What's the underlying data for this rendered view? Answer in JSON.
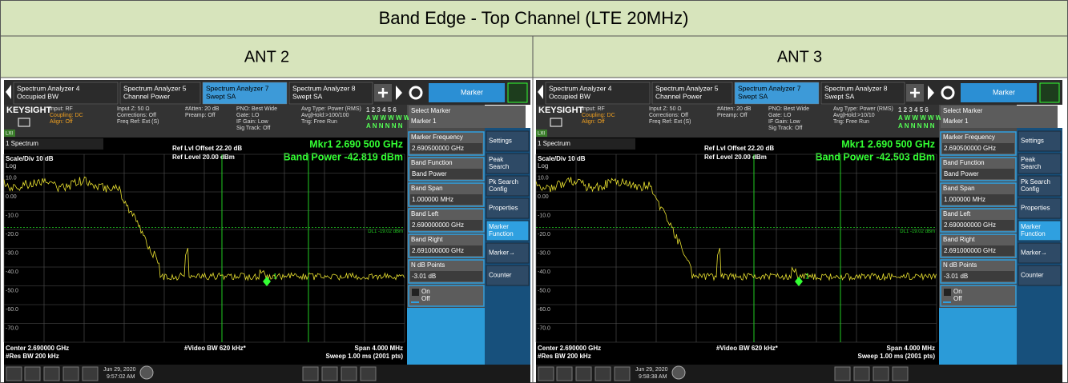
{
  "title": "Band Edge - Top Channel (LTE 20MHz)",
  "columns": [
    {
      "header": "ANT 2",
      "screen": {
        "tabs": [
          [
            "Spectrum Analyzer 4",
            "Occupied BW"
          ],
          [
            "Spectrum Analyzer 5",
            "Channel Power"
          ],
          [
            "Spectrum Analyzer 7",
            "Swept SA"
          ],
          [
            "Spectrum Analyzer 8",
            "Swept SA"
          ]
        ],
        "mode_menu": "Marker",
        "brand": "KEYSIGHT",
        "lxi": "LXI",
        "settings": [
          [
            "Input: RF",
            "Coupling: DC",
            "Align: Off"
          ],
          [
            "Input Z: 50 Ω",
            "Corrections: Off",
            "Freq Ref: Ext (S)"
          ],
          [
            "#Atten: 20 dB",
            "Preamp: Off"
          ],
          [
            "PNO: Best Wide",
            "Gate: LO",
            "IF Gain: Low",
            "Sig Track: Off"
          ],
          [
            "Avg Type: Power (RMS)",
            "Avg|Hold:>100/100",
            "Trig: Free Run"
          ]
        ],
        "trace_rows": [
          "1 2 3 4 5 6",
          "A W W W W W",
          "A N N N N N"
        ],
        "window": "1 Spectrum",
        "ref_offset": "Ref Lvl Offset 22.20 dB",
        "ref_level": "Ref Level 20.00 dBm",
        "marker_readout": "Mkr1  2.690 500 GHz",
        "band_power": "Band Power  -42.819 dBm",
        "scale": "Scale/Div 10 dB",
        "scale_type": "Log",
        "y_labels": [
          "10.0",
          "0.00",
          "-10.0",
          "-20.0",
          "-30.0",
          "-40.0",
          "-50.0",
          "-60.0",
          "-70.0"
        ],
        "display_line": "DL1 -19.02 dBm",
        "marker_label": "1",
        "footer": {
          "center": "Center 2.690000 GHz",
          "res_bw": "#Res BW 200 kHz",
          "video_bw": "#Video BW 620 kHz*",
          "span": "Span 4.000 MHz",
          "sweep": "Sweep 1.00 ms (2001 pts)"
        },
        "date": "Jun 29, 2020",
        "time": "9:57:02 AM",
        "select_marker": {
          "label": "Select Marker",
          "value": "Marker 1"
        },
        "softkeys": [
          {
            "label": "Marker Frequency",
            "value": "2.690500000 GHz"
          },
          {
            "label": "Band Function",
            "value": "Band Power"
          },
          {
            "label": "Band Span",
            "value": "1.000000 MHz"
          },
          {
            "label": "Band Left",
            "value": "2.690000000 GHz"
          },
          {
            "label": "Band Right",
            "value": "2.691000000 GHz"
          },
          {
            "label": "N dB Points",
            "value": "-3.01 dB"
          }
        ],
        "toggle": [
          "On",
          "Off"
        ],
        "menu": [
          [
            "Settings"
          ],
          [
            "Peak",
            "Search"
          ],
          [
            "Pk Search",
            "Config"
          ],
          [
            "Properties"
          ],
          [
            "Marker",
            "Function"
          ],
          [
            "Marker→"
          ],
          [
            "Counter"
          ]
        ]
      }
    },
    {
      "header": "ANT 3",
      "screen": {
        "tabs": [
          [
            "Spectrum Analyzer 4",
            "Occupied BW"
          ],
          [
            "Spectrum Analyzer 5",
            "Channel Power"
          ],
          [
            "Spectrum Analyzer 7",
            "Swept SA"
          ],
          [
            "Spectrum Analyzer 8",
            "Swept SA"
          ]
        ],
        "mode_menu": "Marker",
        "brand": "KEYSIGHT",
        "lxi": "LXI",
        "settings": [
          [
            "Input: RF",
            "Coupling: DC",
            "Align: Off"
          ],
          [
            "Input Z: 50 Ω",
            "Corrections: Off",
            "Freq Ref: Ext (S)"
          ],
          [
            "#Atten: 20 dB",
            "Preamp: Off"
          ],
          [
            "PNO: Best Wide",
            "Gate: LO",
            "IF Gain: Low",
            "Sig Track: Off"
          ],
          [
            "Avg Type: Power (RMS)",
            "Avg|Hold:>10/10",
            "Trig: Free Run"
          ]
        ],
        "trace_rows": [
          "1 2 3 4 5 6",
          "A W W W W W",
          "A N N N N N"
        ],
        "window": "1 Spectrum",
        "ref_offset": "Ref Lvl Offset 22.20 dB",
        "ref_level": "Ref Level 20.00 dBm",
        "marker_readout": "Mkr1  2.690 500 GHz",
        "band_power": "Band Power  -42.503 dBm",
        "scale": "Scale/Div 10 dB",
        "scale_type": "Log",
        "y_labels": [
          "10.0",
          "0.00",
          "-10.0",
          "-20.0",
          "-30.0",
          "-40.0",
          "-50.0",
          "-60.0",
          "-70.0"
        ],
        "display_line": "DL1 -19.02 dBm",
        "marker_label": "1",
        "footer": {
          "center": "Center 2.690000 GHz",
          "res_bw": "#Res BW 200 kHz",
          "video_bw": "#Video BW 620 kHz*",
          "span": "Span 4.000 MHz",
          "sweep": "Sweep 1.00 ms (2001 pts)"
        },
        "date": "Jun 29, 2020",
        "time": "9:58:38 AM",
        "select_marker": {
          "label": "Select Marker",
          "value": "Marker 1"
        },
        "softkeys": [
          {
            "label": "Marker Frequency",
            "value": "2.690500000 GHz"
          },
          {
            "label": "Band Function",
            "value": "Band Power"
          },
          {
            "label": "Band Span",
            "value": "1.000000 MHz"
          },
          {
            "label": "Band Left",
            "value": "2.690000000 GHz"
          },
          {
            "label": "Band Right",
            "value": "2.691000000 GHz"
          },
          {
            "label": "N dB Points",
            "value": "-3.01 dB"
          }
        ],
        "toggle": [
          "On",
          "Off"
        ],
        "menu": [
          [
            "Settings"
          ],
          [
            "Peak",
            "Search"
          ],
          [
            "Pk Search",
            "Config"
          ],
          [
            "Properties"
          ],
          [
            "Marker",
            "Function"
          ],
          [
            "Marker→"
          ],
          [
            "Counter"
          ]
        ]
      }
    }
  ]
}
